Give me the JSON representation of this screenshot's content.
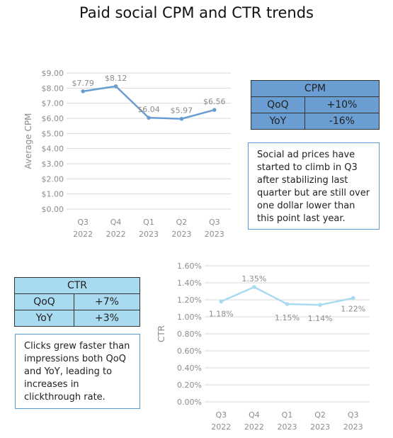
{
  "title": "Paid social CPM and CTR trends",
  "colors": {
    "cpm_line": "#6a9ed2",
    "ctr_line": "#a8daf0",
    "cpm_table_fill": "#6a9ed2",
    "ctr_table_fill": "#a8daf0",
    "grid": "#d9d9d9",
    "note_border": "#5b9bd5"
  },
  "cpm_table": {
    "header": "CPM",
    "rows": [
      {
        "label": "QoQ",
        "value": "+10%"
      },
      {
        "label": "YoY",
        "value": "-16%"
      }
    ]
  },
  "cpm_note": "Social ad prices have started to climb in Q3 after stabilizing last quarter but are still over one dollar lower than this point last year.",
  "ctr_table": {
    "header": "CTR",
    "rows": [
      {
        "label": "QoQ",
        "value": "+7%"
      },
      {
        "label": "YoY",
        "value": "+3%"
      }
    ]
  },
  "ctr_note": "Clicks grew faster than impressions both QoQ and YoY, leading to increases in clickthrough rate.",
  "chart_data": [
    {
      "type": "line",
      "categories": [
        [
          "Q3",
          "2022"
        ],
        [
          "Q4",
          "2022"
        ],
        [
          "Q1",
          "2023"
        ],
        [
          "Q2",
          "2023"
        ],
        [
          "Q3",
          "2023"
        ]
      ],
      "values": [
        7.79,
        8.12,
        6.04,
        5.97,
        6.56
      ],
      "data_labels": [
        "$7.79",
        "$8.12",
        "$6.04",
        "$5.97",
        "$6.56"
      ],
      "ylabel": "Average CPM",
      "ylim": [
        0,
        9
      ],
      "yticks": [
        "$0.00",
        "$1.00",
        "$2.00",
        "$3.00",
        "$4.00",
        "$5.00",
        "$6.00",
        "$7.00",
        "$8.00",
        "$9.00"
      ],
      "grid": true
    },
    {
      "type": "line",
      "categories": [
        [
          "Q3",
          "2022"
        ],
        [
          "Q4",
          "2022"
        ],
        [
          "Q1",
          "2023"
        ],
        [
          "Q2",
          "2023"
        ],
        [
          "Q3",
          "2023"
        ]
      ],
      "values": [
        1.18,
        1.35,
        1.15,
        1.14,
        1.22
      ],
      "data_labels": [
        "1.18%",
        "1.35%",
        "1.15%",
        "1.14%",
        "1.22%"
      ],
      "ylabel": "CTR",
      "ylim": [
        0,
        1.6
      ],
      "yticks": [
        "0.00%",
        "0.20%",
        "0.40%",
        "0.60%",
        "0.80%",
        "1.00%",
        "1.20%",
        "1.40%",
        "1.60%"
      ],
      "grid": true
    }
  ]
}
